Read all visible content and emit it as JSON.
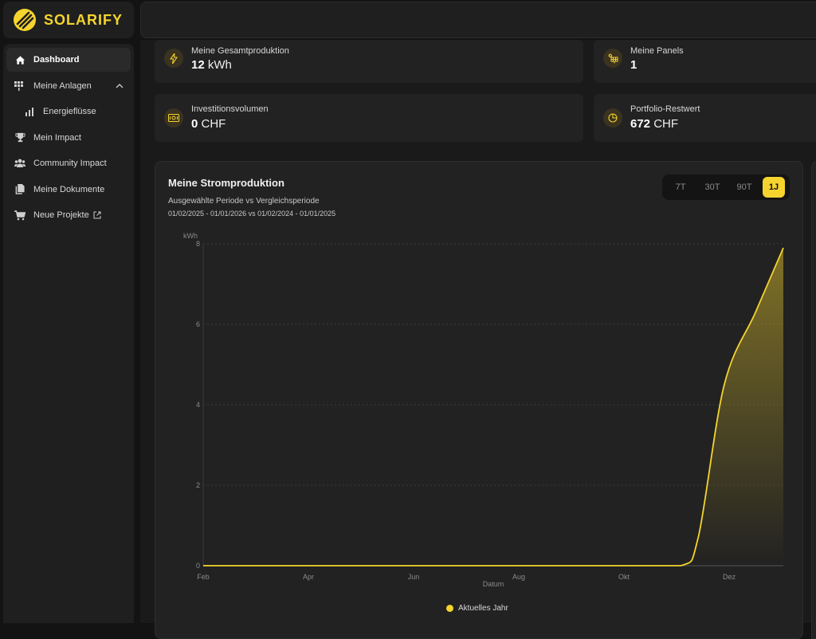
{
  "brand": {
    "name": "SOLARIFY",
    "accent": "#f5d42e"
  },
  "sidebar": {
    "items": [
      {
        "label": "Dashboard",
        "icon": "home-icon",
        "active": true
      },
      {
        "label": "Meine Anlagen",
        "icon": "solar-panels-icon",
        "expanded": true
      },
      {
        "label": "Energieflüsse",
        "icon": "bar-chart-icon",
        "sub": true
      },
      {
        "label": "Mein Impact",
        "icon": "trophy-icon"
      },
      {
        "label": "Community Impact",
        "icon": "users-icon"
      },
      {
        "label": "Meine Dokumente",
        "icon": "documents-icon"
      },
      {
        "label": "Neue Projekte",
        "icon": "cart-icon",
        "external": true
      }
    ]
  },
  "stats": {
    "gesamtproduktion": {
      "label": "Meine Gesamtproduktion",
      "value": "12",
      "unit": "kWh",
      "icon": "lightning-icon"
    },
    "panels": {
      "label": "Meine Panels",
      "value": "1",
      "unit": "",
      "icon": "solar-panel-icon"
    },
    "investition": {
      "label": "Investitionsvolumen",
      "value": "0",
      "unit": "CHF",
      "icon": "money-icon"
    },
    "restwert": {
      "label": "Portfolio-Restwert",
      "value": "672",
      "unit": "CHF",
      "icon": "pie-chart-icon"
    }
  },
  "chart": {
    "title": "Meine Stromproduktion",
    "subtitle": "Ausgewählte Periode vs Vergleichsperiode",
    "range": "01/02/2025 - 01/01/2026 vs 01/02/2024 - 01/01/2025",
    "periods": [
      "7T",
      "30T",
      "90T",
      "1J"
    ],
    "selected_period": "1J",
    "legend": "Aktuelles Jahr"
  },
  "chart_data": {
    "type": "area",
    "ylabel": "kWh",
    "xlabel": "Datum",
    "ylim": [
      0,
      8
    ],
    "yticks": [
      0,
      2,
      4,
      6,
      8
    ],
    "xticks": [
      "Feb",
      "Apr",
      "Jun",
      "Aug",
      "Okt",
      "Dez"
    ],
    "xlim_days": [
      0,
      334
    ],
    "series": [
      {
        "name": "Aktuelles Jahr",
        "color": "#f5d42e",
        "x_days": [
          0,
          60,
          120,
          180,
          240,
          275,
          285,
          300,
          318,
          334
        ],
        "values": [
          0,
          0,
          0,
          0,
          0,
          0.0,
          0.7,
          4.5,
          6.3,
          7.9
        ]
      }
    ],
    "grid": "horizontal-dotted"
  }
}
